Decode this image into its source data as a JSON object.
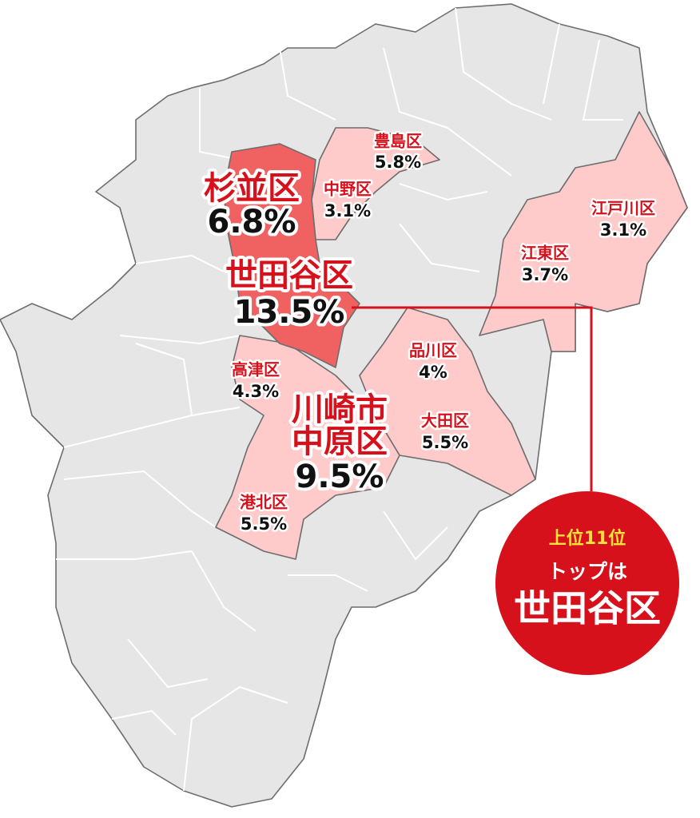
{
  "regions": [
    {
      "lines": [
        "杉並区"
      ],
      "share": "6.8%"
    },
    {
      "lines": [
        "中野区"
      ],
      "share": "3.1%"
    },
    {
      "lines": [
        "豊島区"
      ],
      "share": "5.8%"
    },
    {
      "lines": [
        "江戸川区"
      ],
      "share": "3.1%"
    },
    {
      "lines": [
        "世田谷区"
      ],
      "share": "13.5%"
    },
    {
      "lines": [
        "江東区"
      ],
      "share": "3.7%"
    },
    {
      "lines": [
        "品川区"
      ],
      "share": "4%"
    },
    {
      "lines": [
        "高津区"
      ],
      "share": "4.3%"
    },
    {
      "lines": [
        "川崎市",
        "中原区"
      ],
      "share": "9.5%"
    },
    {
      "lines": [
        "大田区"
      ],
      "share": "5.5%"
    },
    {
      "lines": [
        "港北区"
      ],
      "share": "5.5%"
    }
  ],
  "callout": {
    "rank": "上位11位",
    "lead": "トップは",
    "top": "世田谷区"
  }
}
